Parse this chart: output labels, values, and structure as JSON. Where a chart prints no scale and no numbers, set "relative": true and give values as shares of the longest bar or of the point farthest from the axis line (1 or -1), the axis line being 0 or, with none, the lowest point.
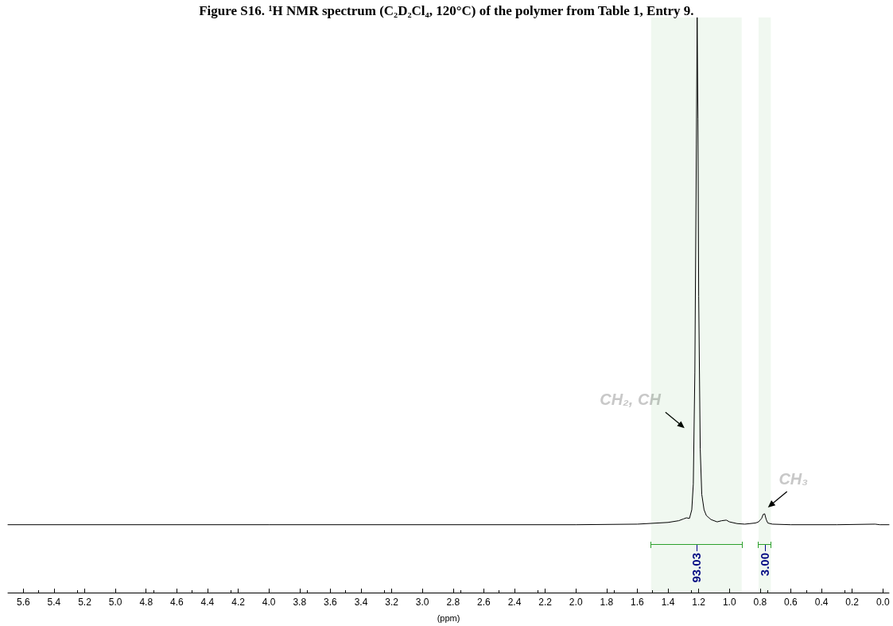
{
  "chart_data": {
    "type": "line",
    "relative": true,
    "title": "Figure S16. ¹H NMR spectrum (C₂D₂Cl₄, 120°C) of the polymer from Table 1, Entry 9.",
    "xlabel": "(ppm)",
    "xlim": [
      5.7,
      -0.04
    ],
    "xticks": [
      {
        "value": 5.6,
        "label": "5.6"
      },
      {
        "value": 5.4,
        "label": "5.4"
      },
      {
        "value": 5.2,
        "label": "5.2"
      },
      {
        "value": 5,
        "label": "5.0"
      },
      {
        "value": 4.8,
        "label": "4.8"
      },
      {
        "value": 4.6,
        "label": "4.6"
      },
      {
        "value": 4.4,
        "label": "4.4"
      },
      {
        "value": 4.2,
        "label": "4.2"
      },
      {
        "value": 4,
        "label": "4.0"
      },
      {
        "value": 3.8,
        "label": "3.8"
      },
      {
        "value": 3.6,
        "label": "3.6"
      },
      {
        "value": 3.4,
        "label": "3.4"
      },
      {
        "value": 3.2,
        "label": "3.2"
      },
      {
        "value": 3,
        "label": "3.0"
      },
      {
        "value": 2.8,
        "label": "2.8"
      },
      {
        "value": 2.6,
        "label": "2.6"
      },
      {
        "value": 2.4,
        "label": "2.4"
      },
      {
        "value": 2.2,
        "label": "2.2"
      },
      {
        "value": 2,
        "label": "2.0"
      },
      {
        "value": 1.8,
        "label": "1.8"
      },
      {
        "value": 1.6,
        "label": "1.6"
      },
      {
        "value": 1.4,
        "label": "1.4"
      },
      {
        "value": 1.2,
        "label": "1.2"
      },
      {
        "value": 1,
        "label": "1.0"
      },
      {
        "value": 0.8,
        "label": "0.8"
      },
      {
        "value": 0.6,
        "label": "0.6"
      },
      {
        "value": 0.4,
        "label": "0.4"
      },
      {
        "value": 0.2,
        "label": "0.2"
      },
      {
        "value": 0,
        "label": "0.0"
      }
    ],
    "marker": "none",
    "line_style": "solid",
    "series": [
      {
        "color": "#000000",
        "x": [
          5.7,
          4,
          2,
          1.6,
          1.4,
          1.33,
          1.3,
          1.28,
          1.26,
          1.245,
          1.235,
          1.225,
          1.215,
          1.21,
          1.205,
          1.2,
          1.19,
          1.18,
          1.165,
          1.15,
          1.12,
          1.08,
          1.05,
          1.02,
          1.0,
          0.95,
          0.9,
          0.83,
          0.81,
          0.79,
          0.78,
          0.77,
          0.76,
          0.75,
          0.72,
          0.6,
          0.3,
          0.05,
          0.02,
          -0.04
        ],
        "values": [
          0.118,
          0.118,
          0.118,
          0.119,
          0.122,
          0.125,
          0.128,
          0.13,
          0.129,
          0.144,
          0.189,
          0.383,
          0.78,
          1,
          0.824,
          0.515,
          0.25,
          0.171,
          0.144,
          0.134,
          0.127,
          0.123,
          0.125,
          0.126,
          0.123,
          0.12,
          0.119,
          0.121,
          0.123,
          0.129,
          0.136,
          0.137,
          0.127,
          0.121,
          0.119,
          0.118,
          0.118,
          0.119,
          0.118,
          0.118
        ]
      }
    ],
    "annotations": [
      {
        "text": "CH₂, CH",
        "x": 1.23,
        "y": 0.286
      },
      {
        "text": "CH₃",
        "x": 0.78,
        "y": 0.137
      }
    ],
    "bands": [
      {
        "axis": "x",
        "from": 1.51,
        "to": 0.92,
        "label": "93.03",
        "color": "#2ca02c"
      },
      {
        "axis": "x",
        "from": 0.81,
        "to": 0.73,
        "label": "3.00",
        "color": "#2ca02c"
      }
    ]
  }
}
